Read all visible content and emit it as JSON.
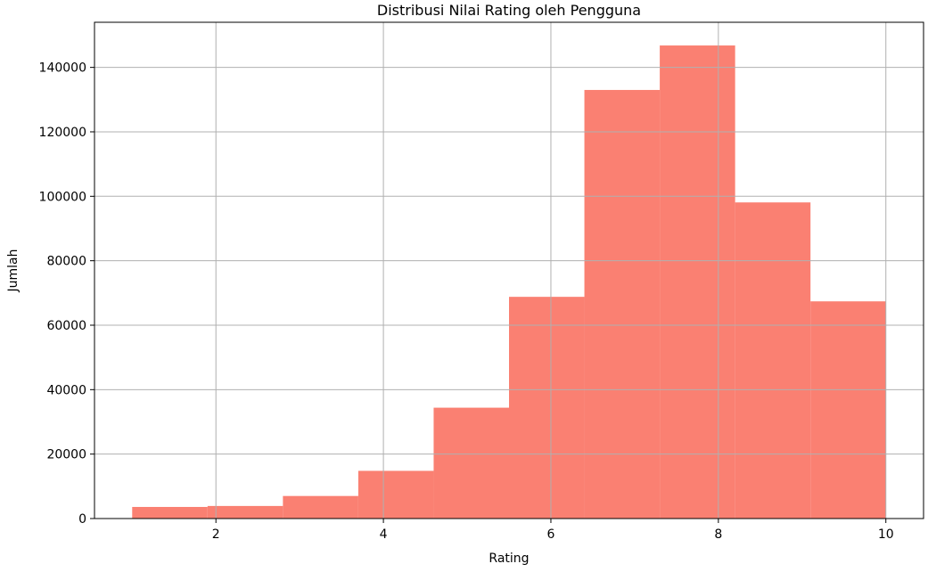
{
  "chart_data": {
    "type": "bar",
    "title": "Distribusi Nilai Rating oleh Pengguna",
    "xlabel": "Rating",
    "ylabel": "Jumlah",
    "bin_edges": [
      1.0,
      1.9,
      2.8,
      3.7,
      4.6,
      5.5,
      6.4,
      7.3,
      8.2,
      9.1,
      10.0
    ],
    "values": [
      3600,
      3900,
      7000,
      14800,
      34400,
      68800,
      133000,
      146800,
      98100,
      67400
    ],
    "xlim": [
      0.55,
      10.45
    ],
    "ylim": [
      0,
      154000
    ],
    "xticks": [
      2,
      4,
      6,
      8,
      10
    ],
    "yticks": [
      0,
      20000,
      40000,
      60000,
      80000,
      100000,
      120000,
      140000
    ],
    "grid": true,
    "bar_color": "#fa8072"
  }
}
